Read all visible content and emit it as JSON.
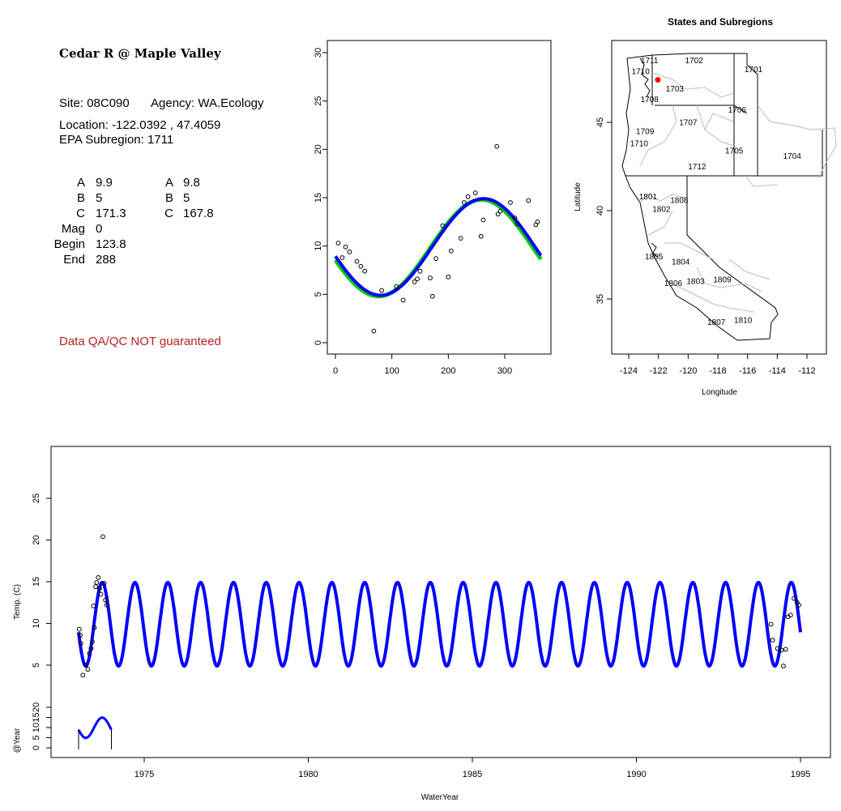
{
  "info": {
    "title": "Cedar R @ Maple Valley",
    "site_label": "Site:",
    "site": "08C090",
    "agency_label": "Agency:",
    "agency": "WA.Ecology",
    "location_label": "Location:",
    "location": "-122.0392 , 47.4059",
    "epa_label": "EPA Subregion:",
    "epa": "1711",
    "params_left": [
      {
        "name": "A",
        "value": "9.9"
      },
      {
        "name": "B",
        "value": "5"
      },
      {
        "name": "C",
        "value": "171.3"
      },
      {
        "name": "Mag",
        "value": "0"
      },
      {
        "name": "Begin",
        "value": "123.8"
      },
      {
        "name": "End",
        "value": "288"
      }
    ],
    "params_right": [
      {
        "name": "A",
        "value": "9.8"
      },
      {
        "name": "B",
        "value": "5"
      },
      {
        "name": "C",
        "value": "167.8"
      }
    ],
    "disclaimer": "Data QA/QC NOT guaranteed",
    "disclaimer_color": "#b22222"
  },
  "chart_data": [
    {
      "type": "scatter",
      "title": "",
      "xlabel": "",
      "ylabel": "",
      "xlim": [
        0,
        365
      ],
      "ylim": [
        0,
        30
      ],
      "xticks": [
        0,
        100,
        200,
        300
      ],
      "yticks": [
        0,
        5,
        10,
        15,
        20,
        25,
        30
      ],
      "points": [
        [
          5,
          10.3
        ],
        [
          12,
          8.8
        ],
        [
          18,
          9.9
        ],
        [
          25,
          9.4
        ],
        [
          38,
          8.4
        ],
        [
          45,
          7.9
        ],
        [
          52,
          7.4
        ],
        [
          68,
          1.2
        ],
        [
          82,
          5.4
        ],
        [
          108,
          5.8
        ],
        [
          120,
          4.4
        ],
        [
          140,
          6.3
        ],
        [
          145,
          6.6
        ],
        [
          150,
          7.4
        ],
        [
          168,
          6.7
        ],
        [
          172,
          4.8
        ],
        [
          178,
          8.7
        ],
        [
          190,
          12.1
        ],
        [
          200,
          6.8
        ],
        [
          205,
          9.5
        ],
        [
          222,
          10.8
        ],
        [
          228,
          14.5
        ],
        [
          235,
          15.1
        ],
        [
          248,
          15.5
        ],
        [
          258,
          11.0
        ],
        [
          262,
          12.7
        ],
        [
          286,
          20.3
        ],
        [
          288,
          13.3
        ],
        [
          292,
          13.6
        ],
        [
          310,
          14.5
        ],
        [
          318,
          12.9
        ],
        [
          322,
          12.3
        ],
        [
          342,
          14.7
        ],
        [
          355,
          12.2
        ],
        [
          358,
          12.5
        ]
      ],
      "series": [
        {
          "color": "#00cc00",
          "A": 9.8,
          "B": 5,
          "C": 167.8
        },
        {
          "color": "#0000ff",
          "A": 9.9,
          "B": 5,
          "C": 171.3
        }
      ]
    },
    {
      "type": "map",
      "title": "States and Subregions",
      "xlabel": "Longitude",
      "ylabel": "Latitude",
      "xlim": [
        -125.2,
        -110.6
      ],
      "ylim": [
        32.2,
        49.6
      ],
      "xticks": [
        -124,
        -122,
        -120,
        -118,
        -116,
        -114,
        -112
      ],
      "yticks": [
        35,
        40,
        45
      ],
      "site": {
        "lon": -122.0392,
        "lat": 47.4059,
        "color": "#ff0000"
      },
      "regions": [
        {
          "label": "1711",
          "lon": -122.6,
          "lat": 48.5
        },
        {
          "label": "1710",
          "lon": -123.2,
          "lat": 47.9
        },
        {
          "label": "1702",
          "lon": -119.6,
          "lat": 48.5
        },
        {
          "label": "1701",
          "lon": -115.6,
          "lat": 48.0
        },
        {
          "label": "1703",
          "lon": -120.9,
          "lat": 46.9
        },
        {
          "label": "1708",
          "lon": -122.6,
          "lat": 46.3
        },
        {
          "label": "1706",
          "lon": -116.7,
          "lat": 45.7
        },
        {
          "label": "1707",
          "lon": -120.0,
          "lat": 45.0
        },
        {
          "label": "1709",
          "lon": -122.9,
          "lat": 44.5
        },
        {
          "label": "1710",
          "lon": -123.3,
          "lat": 43.8
        },
        {
          "label": "1705",
          "lon": -116.9,
          "lat": 43.4
        },
        {
          "label": "1704",
          "lon": -113.0,
          "lat": 43.1
        },
        {
          "label": "1712",
          "lon": -119.4,
          "lat": 42.5
        },
        {
          "label": "1801",
          "lon": -122.7,
          "lat": 40.8
        },
        {
          "label": "1808",
          "lon": -120.6,
          "lat": 40.6
        },
        {
          "label": "1802",
          "lon": -121.8,
          "lat": 40.1
        },
        {
          "label": "1805",
          "lon": -122.3,
          "lat": 37.4
        },
        {
          "label": "1804",
          "lon": -120.5,
          "lat": 37.1
        },
        {
          "label": "1806",
          "lon": -121.0,
          "lat": 35.9
        },
        {
          "label": "1803",
          "lon": -119.5,
          "lat": 36.0
        },
        {
          "label": "1809",
          "lon": -117.7,
          "lat": 36.1
        },
        {
          "label": "1810",
          "lon": -116.3,
          "lat": 33.8
        },
        {
          "label": "1807",
          "lon": -118.1,
          "lat": 33.7
        }
      ]
    },
    {
      "type": "line",
      "title": "",
      "xlabel": "WaterYear",
      "ylabel": "Temp. (C)",
      "xlim": [
        1972.8,
        1995.2
      ],
      "ylim": [
        0,
        30
      ],
      "xticks": [
        1975,
        1980,
        1985,
        1990,
        1995
      ],
      "yticks": [
        5,
        10,
        15,
        20,
        25
      ],
      "curve": {
        "color": "#0000ff",
        "start": 1973.0,
        "end": 1995.0,
        "A": 9.9,
        "B": 5,
        "C": 171.3
      },
      "points": [
        [
          1973.02,
          9.3
        ],
        [
          1973.05,
          8.6
        ],
        [
          1973.07,
          7.6
        ],
        [
          1973.13,
          3.8
        ],
        [
          1973.22,
          5.0
        ],
        [
          1973.28,
          4.5
        ],
        [
          1973.33,
          6.4
        ],
        [
          1973.38,
          7.0
        ],
        [
          1973.42,
          7.8
        ],
        [
          1973.45,
          12.1
        ],
        [
          1973.48,
          9.5
        ],
        [
          1973.52,
          14.4
        ],
        [
          1973.55,
          14.9
        ],
        [
          1973.6,
          15.5
        ],
        [
          1973.64,
          14.2
        ],
        [
          1973.68,
          13.5
        ],
        [
          1973.74,
          20.4
        ],
        [
          1973.78,
          14.8
        ],
        [
          1973.82,
          12.8
        ],
        [
          1973.86,
          12.2
        ],
        [
          1994.1,
          9.9
        ],
        [
          1994.15,
          8.0
        ],
        [
          1994.3,
          7.0
        ],
        [
          1994.42,
          6.8
        ],
        [
          1994.48,
          4.9
        ],
        [
          1994.55,
          6.9
        ],
        [
          1994.62,
          10.8
        ],
        [
          1994.7,
          11.0
        ],
        [
          1994.8,
          13.0
        ],
        [
          1994.9,
          12.5
        ],
        [
          1994.95,
          12.2
        ]
      ]
    },
    {
      "type": "line",
      "title": "",
      "xlabel": "",
      "ylabel": "@Year",
      "ylim": [
        0,
        25
      ],
      "yticks": [
        0,
        5,
        10,
        15,
        20
      ],
      "curve": {
        "color": "#0000ff",
        "start": 1973.0,
        "end": 1974.0,
        "A": 9.9,
        "B": 5,
        "C": 171.3
      }
    }
  ]
}
